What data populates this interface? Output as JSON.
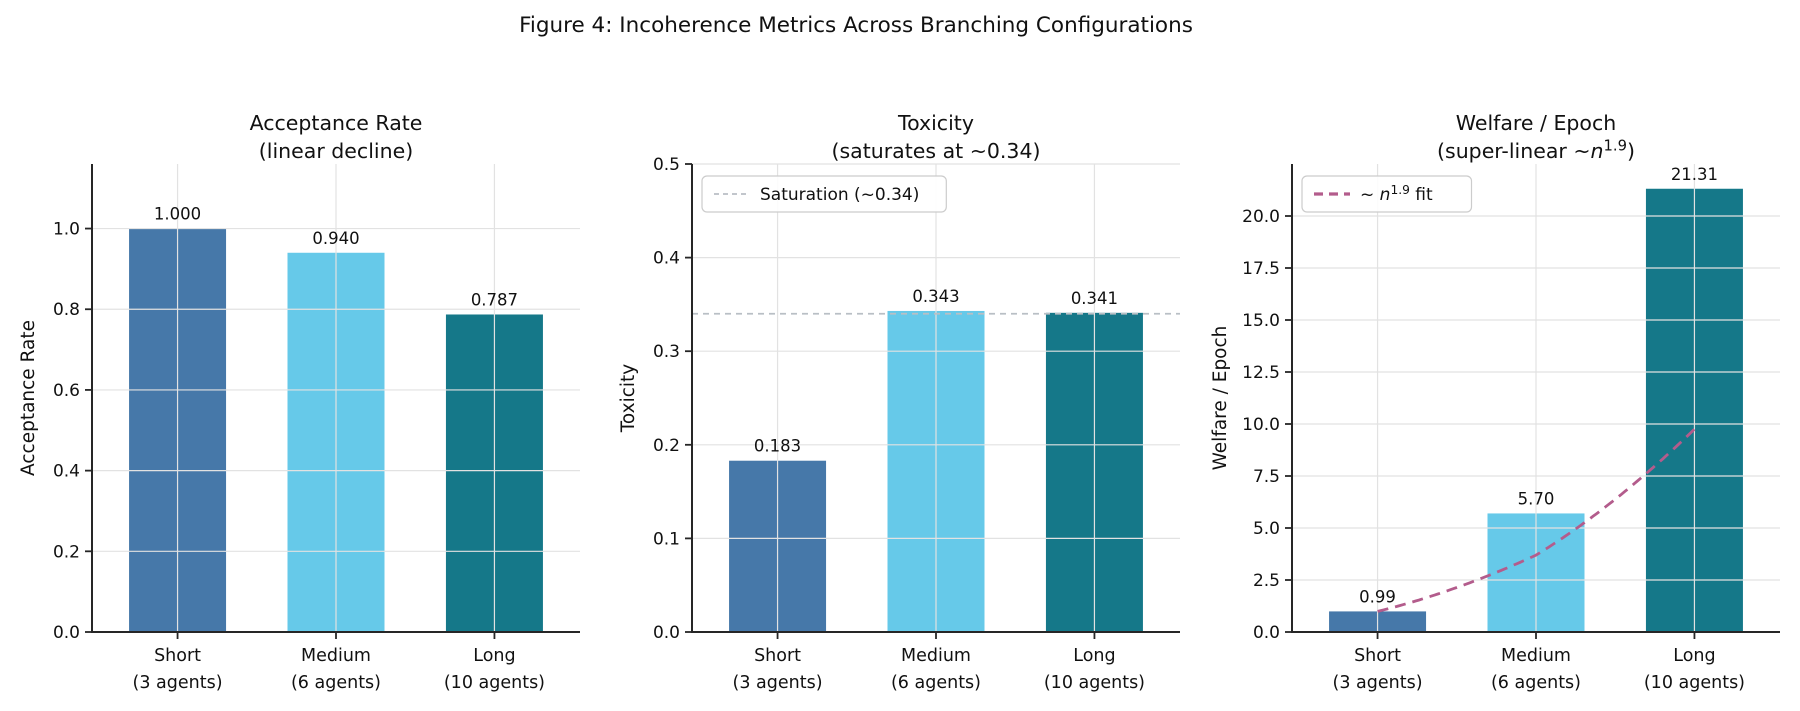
{
  "figure": {
    "title": "Figure 4: Incoherence Metrics Across Branching Configurations",
    "background": "#ffffff",
    "text_color": "#111111",
    "grid_color": "#e2e2e2",
    "spine_color": "#262626"
  },
  "chart_data": [
    {
      "id": "acceptance-rate",
      "type": "bar",
      "title_lines": [
        [
          {
            "t": "Acceptance Rate"
          }
        ],
        [
          {
            "t": "(linear decline)"
          }
        ]
      ],
      "ylabel": "Acceptance Rate",
      "categories": [
        [
          "Short",
          "(3 agents)"
        ],
        [
          "Medium",
          "(6 agents)"
        ],
        [
          "Long",
          "(10 agents)"
        ]
      ],
      "values": [
        1.0,
        0.94,
        0.787
      ],
      "bar_labels": [
        "1.000",
        "0.940",
        "0.787"
      ],
      "bar_colors": [
        "#4678a9",
        "#66c9e9",
        "#157889"
      ],
      "yticks": [
        0,
        0.2,
        0.4,
        0.6,
        0.8,
        1.0
      ],
      "ytick_labels": [
        "0.0",
        "0.2",
        "0.4",
        "0.6",
        "0.8",
        "1.0"
      ],
      "ylim": [
        0,
        1.16
      ],
      "grid": true,
      "legend": null
    },
    {
      "id": "toxicity",
      "type": "bar",
      "title_lines": [
        [
          {
            "t": "Toxicity"
          }
        ],
        [
          {
            "t": "(saturates at ~0.34)"
          }
        ]
      ],
      "ylabel": "Toxicity",
      "categories": [
        [
          "Short",
          "(3 agents)"
        ],
        [
          "Medium",
          "(6 agents)"
        ],
        [
          "Long",
          "(10 agents)"
        ]
      ],
      "values": [
        0.183,
        0.343,
        0.341
      ],
      "bar_labels": [
        "0.183",
        "0.343",
        "0.341"
      ],
      "bar_colors": [
        "#4678a9",
        "#66c9e9",
        "#157889"
      ],
      "yticks": [
        0,
        0.1,
        0.2,
        0.3,
        0.4,
        0.5
      ],
      "ytick_labels": [
        "0.0",
        "0.1",
        "0.2",
        "0.3",
        "0.4",
        "0.5"
      ],
      "ylim": [
        0,
        0.5
      ],
      "grid": true,
      "ref_line": {
        "y": 0.34,
        "color": "#b9bfc5",
        "dash": "6,5",
        "width": 1.8
      },
      "legend": {
        "segments": [
          {
            "t": "Saturation (~0.34)"
          }
        ],
        "line_color": "#b9bfc5",
        "line_width": 1.8,
        "dash": "5,4"
      }
    },
    {
      "id": "welfare-per-epoch",
      "type": "bar",
      "title_lines": [
        [
          {
            "t": "Welfare / Epoch"
          }
        ],
        [
          {
            "t": "(super-linear ~"
          },
          {
            "t": "n",
            "i": true
          },
          {
            "t": "1.9",
            "sup": true
          },
          {
            "t": ")"
          }
        ]
      ],
      "ylabel": "Welfare / Epoch",
      "categories": [
        [
          "Short",
          "(3 agents)"
        ],
        [
          "Medium",
          "(6 agents)"
        ],
        [
          "Long",
          "(10 agents)"
        ]
      ],
      "values": [
        0.99,
        5.7,
        21.31
      ],
      "bar_labels": [
        "0.99",
        "5.70",
        "21.31"
      ],
      "bar_colors": [
        "#4678a9",
        "#66c9e9",
        "#157889"
      ],
      "yticks": [
        0,
        2.5,
        5,
        7.5,
        10,
        12.5,
        15,
        17.5,
        20
      ],
      "ytick_labels": [
        "0.0",
        "2.5",
        "5.0",
        "7.5",
        "10.0",
        "12.5",
        "15.0",
        "17.5",
        "20.0"
      ],
      "ylim": [
        0,
        22.5
      ],
      "grid": true,
      "fit_curve": {
        "coef": 0.99,
        "exponent": 1.9,
        "n_at_categories": [
          3,
          6,
          10
        ],
        "color": "#b35c8c",
        "dash": "11,7",
        "width": 2.8
      },
      "legend": {
        "segments": [
          {
            "t": "~ "
          },
          {
            "t": "n",
            "i": true
          },
          {
            "t": "1.9",
            "sup": true
          },
          {
            "t": " fit"
          }
        ],
        "line_color": "#b35c8c",
        "line_width": 3.2,
        "dash": "9,6"
      }
    }
  ]
}
